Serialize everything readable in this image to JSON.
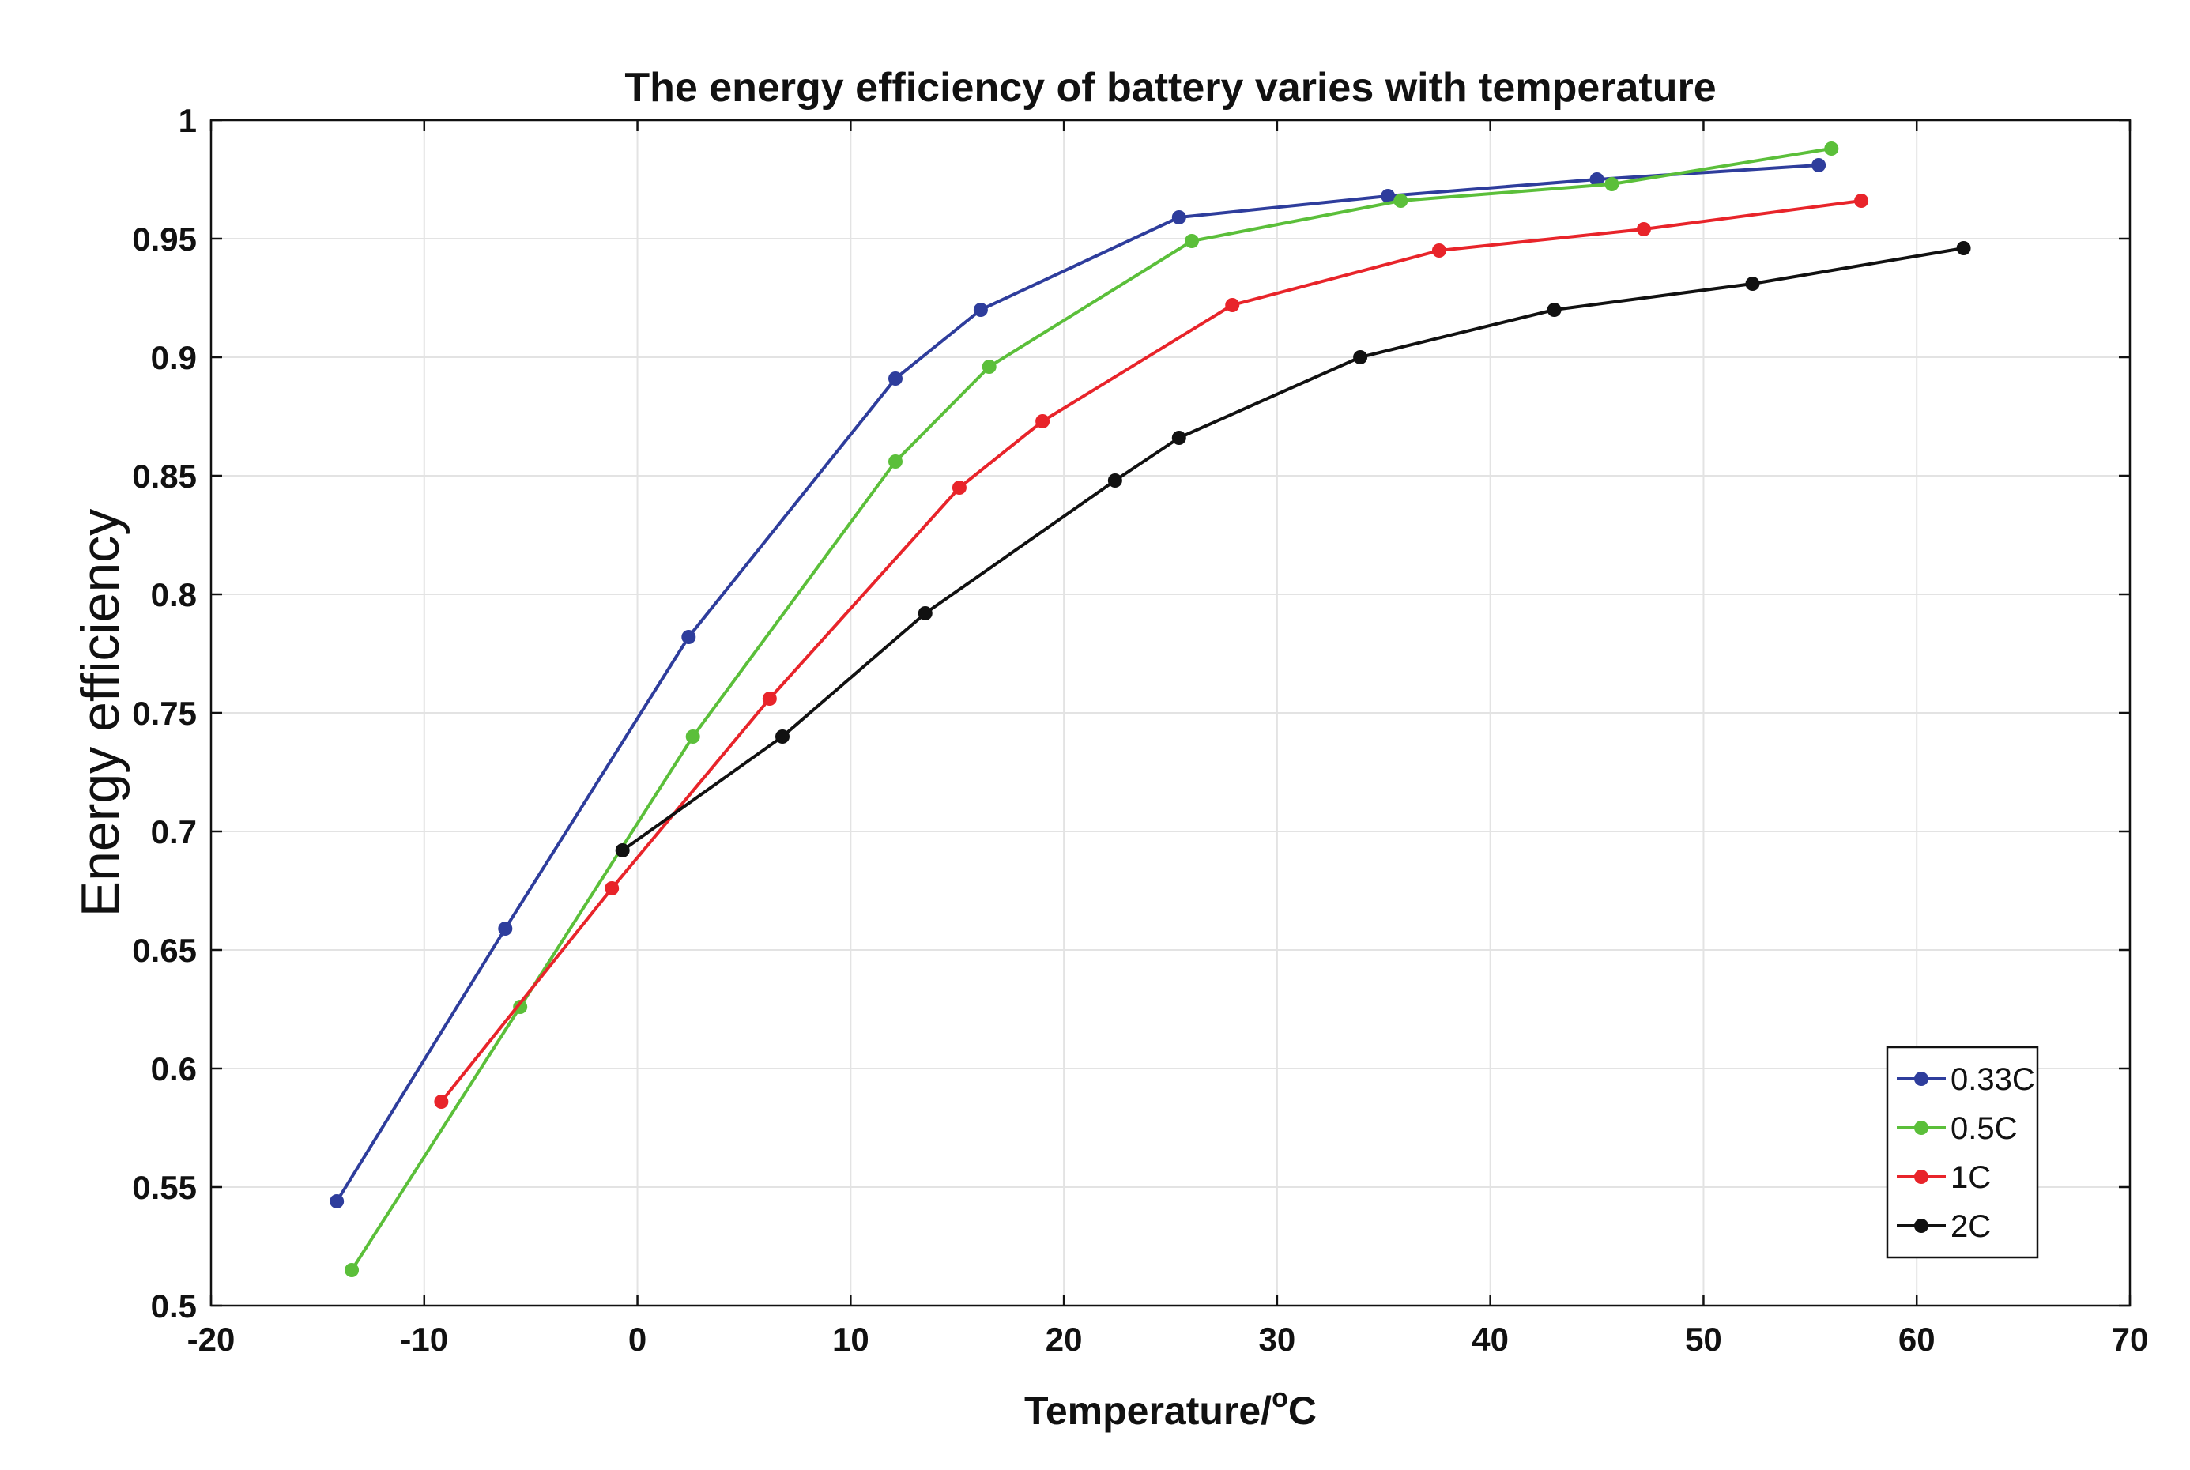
{
  "chart_data": {
    "type": "line",
    "title": "The energy efficiency of battery varies with temperature",
    "xlabel": "Temperature/",
    "xlabel_superscript": "o",
    "xlabel_suffix": "C",
    "ylabel": "Energy efficiency",
    "xlim": [
      -20,
      70
    ],
    "ylim": [
      0.5,
      1
    ],
    "xticks": [
      -20,
      -10,
      0,
      10,
      20,
      30,
      40,
      50,
      60,
      70
    ],
    "xtick_labels": [
      "-20",
      "-10",
      "0",
      "10",
      "20",
      "30",
      "40",
      "50",
      "60",
      "70"
    ],
    "yticks": [
      0.5,
      0.55,
      0.6,
      0.65,
      0.7,
      0.75,
      0.8,
      0.85,
      0.9,
      0.95,
      1
    ],
    "ytick_labels": [
      "0.5",
      "0.55",
      "0.6",
      "0.65",
      "0.7",
      "0.75",
      "0.8",
      "0.85",
      "0.9",
      "0.95",
      "1"
    ],
    "grid": true,
    "legend_position": "bottom-right",
    "series": [
      {
        "name": "0.33C",
        "color": "#2e3d9c",
        "x": [
          -14.1,
          -6.2,
          2.4,
          12.1,
          16.1,
          25.4,
          35.2,
          45.0,
          55.4
        ],
        "y": [
          0.544,
          0.659,
          0.782,
          0.891,
          0.92,
          0.959,
          0.968,
          0.975,
          0.981
        ]
      },
      {
        "name": "0.5C",
        "color": "#5bbf3a",
        "x": [
          -13.4,
          -5.5,
          2.6,
          12.1,
          16.5,
          26.0,
          35.8,
          45.7,
          56.0
        ],
        "y": [
          0.515,
          0.626,
          0.74,
          0.856,
          0.896,
          0.949,
          0.966,
          0.973,
          0.988
        ]
      },
      {
        "name": "1C",
        "color": "#e8242a",
        "x": [
          -9.2,
          -1.2,
          6.2,
          15.1,
          19.0,
          27.9,
          37.6,
          47.2,
          57.4
        ],
        "y": [
          0.586,
          0.676,
          0.756,
          0.845,
          0.873,
          0.922,
          0.945,
          0.954,
          0.966
        ]
      },
      {
        "name": "2C",
        "color": "#111111",
        "x": [
          -0.7,
          6.8,
          13.5,
          22.4,
          25.4,
          33.9,
          43.0,
          52.3,
          62.2
        ],
        "y": [
          0.692,
          0.74,
          0.792,
          0.848,
          0.866,
          0.9,
          0.92,
          0.931,
          0.946
        ]
      }
    ]
  }
}
